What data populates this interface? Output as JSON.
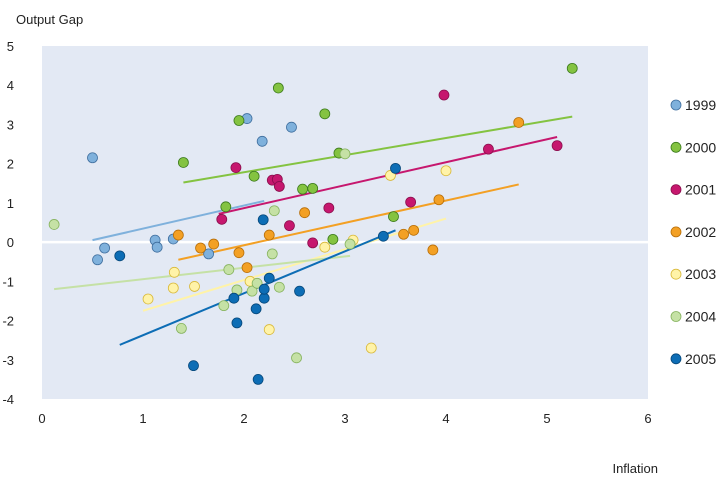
{
  "chart_data": {
    "type": "scatter",
    "ylabel": "Output Gap",
    "xlabel": "Inflation",
    "xlim": [
      0,
      6
    ],
    "ylim": [
      -4,
      5
    ],
    "x_ticks": [
      0,
      1,
      2,
      3,
      4,
      5,
      6
    ],
    "y_ticks": [
      -4,
      -3,
      -2,
      -1,
      0,
      1,
      2,
      3,
      4,
      5
    ],
    "grid": false,
    "legend_position": "right",
    "colors": {
      "plot_background": "#e3e9f4",
      "zero_line": "#ffffff"
    },
    "series": [
      {
        "name": "1999",
        "color": "#7fb1dc",
        "edge": "#3f6e9e",
        "points": [
          [
            0.5,
            2.15
          ],
          [
            0.55,
            -0.45
          ],
          [
            0.62,
            -0.15
          ],
          [
            1.12,
            0.05
          ],
          [
            1.14,
            -0.13
          ],
          [
            1.3,
            0.08
          ],
          [
            1.65,
            -0.3
          ],
          [
            2.03,
            3.15
          ],
          [
            2.18,
            2.57
          ],
          [
            2.47,
            2.93
          ]
        ],
        "trend": [
          [
            0.5,
            0.05
          ],
          [
            2.2,
            1.05
          ]
        ]
      },
      {
        "name": "2000",
        "color": "#84c341",
        "edge": "#3b7a1b",
        "points": [
          [
            1.4,
            2.03
          ],
          [
            1.82,
            0.9
          ],
          [
            1.95,
            3.1
          ],
          [
            2.1,
            1.68
          ],
          [
            2.34,
            3.93
          ],
          [
            2.58,
            1.35
          ],
          [
            2.68,
            1.37
          ],
          [
            2.8,
            3.27
          ],
          [
            2.88,
            0.07
          ],
          [
            2.94,
            2.27
          ],
          [
            3.48,
            0.65
          ],
          [
            5.25,
            4.43
          ]
        ],
        "trend": [
          [
            1.4,
            1.52
          ],
          [
            5.25,
            3.2
          ]
        ]
      },
      {
        "name": "2001",
        "color": "#c6176e",
        "edge": "#8a0f4d",
        "points": [
          [
            1.78,
            0.58
          ],
          [
            1.92,
            1.9
          ],
          [
            2.28,
            1.58
          ],
          [
            2.33,
            1.6
          ],
          [
            2.35,
            1.42
          ],
          [
            2.45,
            0.42
          ],
          [
            2.68,
            -0.02
          ],
          [
            2.84,
            0.87
          ],
          [
            3.65,
            1.02
          ],
          [
            3.98,
            3.75
          ],
          [
            4.42,
            2.37
          ],
          [
            5.1,
            2.46
          ]
        ],
        "trend": [
          [
            1.75,
            0.72
          ],
          [
            5.1,
            2.68
          ]
        ]
      },
      {
        "name": "2002",
        "color": "#f3a024",
        "edge": "#b86e08",
        "points": [
          [
            1.35,
            0.18
          ],
          [
            1.57,
            -0.15
          ],
          [
            1.7,
            -0.05
          ],
          [
            1.95,
            -0.27
          ],
          [
            2.03,
            -0.65
          ],
          [
            2.25,
            0.18
          ],
          [
            2.6,
            0.75
          ],
          [
            3.58,
            0.2
          ],
          [
            3.68,
            0.3
          ],
          [
            3.87,
            -0.2
          ],
          [
            3.93,
            1.08
          ],
          [
            4.72,
            3.05
          ]
        ],
        "trend": [
          [
            1.35,
            -0.45
          ],
          [
            4.72,
            1.47
          ]
        ]
      },
      {
        "name": "2003",
        "color": "#fff3a8",
        "edge": "#d9b93a",
        "points": [
          [
            1.05,
            -1.45
          ],
          [
            1.3,
            -1.17
          ],
          [
            1.31,
            -0.77
          ],
          [
            1.51,
            -1.13
          ],
          [
            2.06,
            -1.0
          ],
          [
            2.25,
            -2.23
          ],
          [
            2.8,
            -0.13
          ],
          [
            3.08,
            0.05
          ],
          [
            3.26,
            -2.7
          ],
          [
            3.45,
            1.7
          ],
          [
            4.0,
            1.82
          ]
        ],
        "trend": [
          [
            1.0,
            -1.75
          ],
          [
            4.0,
            0.6
          ]
        ]
      },
      {
        "name": "2004",
        "color": "#c5e1a5",
        "edge": "#86b35e",
        "points": [
          [
            0.12,
            0.45
          ],
          [
            1.38,
            -2.2
          ],
          [
            1.8,
            -1.62
          ],
          [
            1.85,
            -0.7
          ],
          [
            1.93,
            -1.22
          ],
          [
            2.08,
            -1.25
          ],
          [
            2.13,
            -1.05
          ],
          [
            2.28,
            -0.3
          ],
          [
            2.3,
            0.8
          ],
          [
            2.35,
            -1.15
          ],
          [
            2.52,
            -2.95
          ],
          [
            3.0,
            2.25
          ],
          [
            3.05,
            -0.05
          ]
        ],
        "trend": [
          [
            0.12,
            -1.2
          ],
          [
            3.05,
            -0.35
          ]
        ]
      },
      {
        "name": "2005",
        "color": "#0d6db5",
        "edge": "#06477a",
        "points": [
          [
            0.77,
            -0.35
          ],
          [
            1.5,
            -3.15
          ],
          [
            1.9,
            -1.43
          ],
          [
            1.93,
            -2.06
          ],
          [
            2.12,
            -1.7
          ],
          [
            2.14,
            -3.5
          ],
          [
            2.19,
            0.57
          ],
          [
            2.2,
            -1.43
          ],
          [
            2.2,
            -1.2
          ],
          [
            2.25,
            -0.92
          ],
          [
            2.55,
            -1.25
          ],
          [
            3.38,
            0.15
          ],
          [
            3.5,
            1.88
          ]
        ],
        "trend": [
          [
            0.77,
            -2.62
          ],
          [
            3.5,
            0.3
          ]
        ]
      }
    ]
  }
}
